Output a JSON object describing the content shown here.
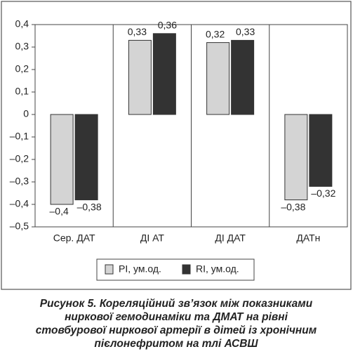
{
  "chart_data": {
    "type": "bar",
    "categories": [
      "Сер. ДАТ",
      "ДІ АТ",
      "ДІ ДАТ",
      "ДАТн"
    ],
    "series": [
      {
        "name": "PI, ум.од.",
        "color": "#d4d4d4",
        "values": [
          -0.4,
          0.33,
          0.32,
          -0.38
        ],
        "value_labels": [
          "–0,4",
          "0,33",
          "0,32",
          "–0,38"
        ]
      },
      {
        "name": "RI, ум.од.",
        "color": "#333333",
        "values": [
          -0.38,
          0.36,
          0.33,
          -0.32
        ],
        "value_labels": [
          "–0,38",
          "0,36",
          "0,33",
          "–0,32"
        ]
      }
    ],
    "ylim": [
      -0.5,
      0.4
    ],
    "yticks": [
      {
        "value": -0.5,
        "label": "–0,5"
      },
      {
        "value": -0.4,
        "label": "–0,4"
      },
      {
        "value": -0.3,
        "label": "–0,3"
      },
      {
        "value": -0.2,
        "label": "–0,2"
      },
      {
        "value": -0.1,
        "label": "–0,1"
      },
      0,
      {
        "value": 0.1,
        "label": "0,1"
      },
      {
        "value": 0.2,
        "label": "0,2"
      },
      {
        "value": 0.3,
        "label": "0,3"
      },
      {
        "value": 0.4,
        "label": "0,4"
      }
    ],
    "legend": "bottom",
    "caption": [
      "Рисунок 5. Кореляційний зв’язок між показниками",
      "ниркової гемодинаміки та ДМАТ на рівні",
      "стовбурової ниркової артерії в дітей із хронічним",
      "пієлонефритом на тлі АСВШ"
    ]
  }
}
